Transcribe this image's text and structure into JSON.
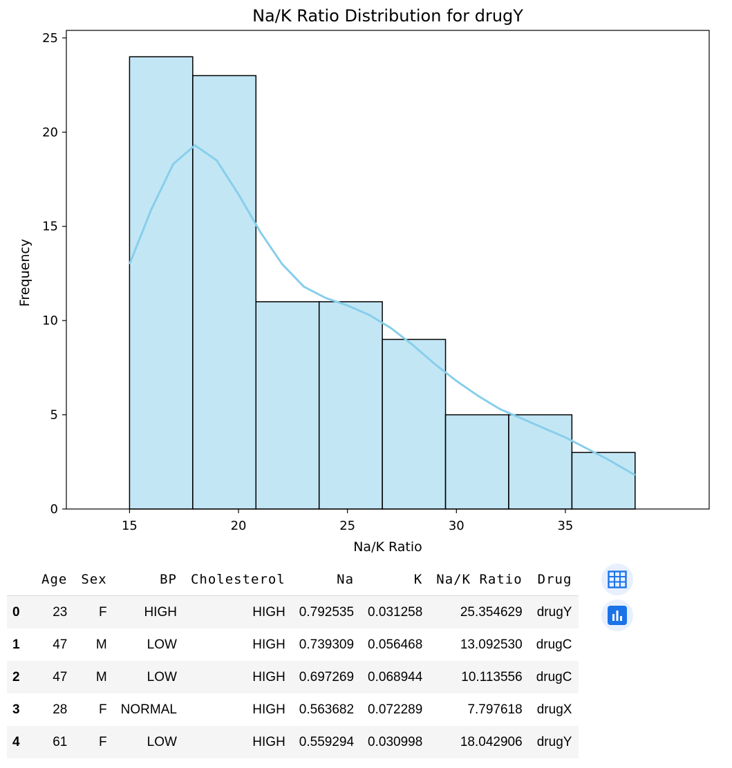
{
  "chart_data": {
    "type": "bar",
    "title": "Na/K Ratio Distribution for drugY",
    "xlabel": "Na/K Ratio",
    "ylabel": "Frequency",
    "bin_edges": [
      15.0,
      17.9,
      20.8,
      23.7,
      26.6,
      29.5,
      32.4,
      35.3,
      38.2
    ],
    "values": [
      24,
      23,
      11,
      11,
      9,
      5,
      5,
      3
    ],
    "xlim": [
      12.1,
      41.6
    ],
    "ylim": [
      0,
      25.4
    ],
    "xticks": [
      15,
      20,
      25,
      30,
      35
    ],
    "yticks": [
      0,
      5,
      10,
      15,
      20,
      25
    ],
    "kde": {
      "x": [
        15.0,
        16.0,
        17.0,
        18.0,
        19.0,
        20.0,
        21.0,
        22.0,
        23.0,
        24.0,
        25.0,
        26.0,
        27.0,
        28.0,
        29.0,
        30.0,
        31.0,
        32.0,
        33.0,
        34.0,
        35.0,
        36.0,
        37.0,
        38.2
      ],
      "y": [
        13.0,
        15.9,
        18.3,
        19.3,
        18.5,
        16.7,
        14.7,
        13.0,
        11.8,
        11.2,
        10.8,
        10.3,
        9.6,
        8.7,
        7.7,
        6.8,
        6.0,
        5.3,
        4.8,
        4.3,
        3.8,
        3.2,
        2.6,
        1.8
      ]
    },
    "bar_color": "#87ceeb",
    "line_color": "#87ceeb"
  },
  "table": {
    "columns": [
      "",
      "Age",
      "Sex",
      "BP",
      "Cholesterol",
      "Na",
      "K",
      "Na/K Ratio",
      "Drug"
    ],
    "rows": [
      [
        "0",
        "23",
        "F",
        "HIGH",
        "HIGH",
        "0.792535",
        "0.031258",
        "25.354629",
        "drugY"
      ],
      [
        "1",
        "47",
        "M",
        "LOW",
        "HIGH",
        "0.739309",
        "0.056468",
        "13.092530",
        "drugC"
      ],
      [
        "2",
        "47",
        "M",
        "LOW",
        "HIGH",
        "0.697269",
        "0.068944",
        "10.113556",
        "drugC"
      ],
      [
        "3",
        "28",
        "F",
        "NORMAL",
        "HIGH",
        "0.563682",
        "0.072289",
        "7.797618",
        "drugX"
      ],
      [
        "4",
        "61",
        "F",
        "LOW",
        "HIGH",
        "0.559294",
        "0.030998",
        "18.042906",
        "drugY"
      ]
    ]
  },
  "side_buttons": {
    "table_icon": "table-icon",
    "chart_icon": "bar-chart-icon",
    "accent": "#1a73e8"
  }
}
